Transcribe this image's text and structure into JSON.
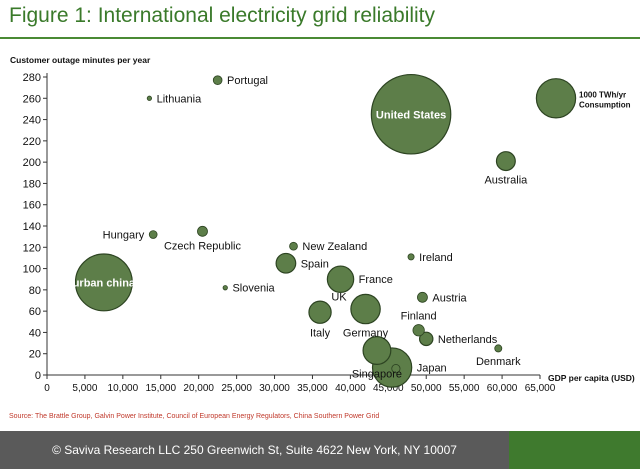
{
  "header": {
    "title": "Figure 1: International electricity grid reliability"
  },
  "source": "Source: The Brattle Group, Galvin Power Institute, Council of European Energy Regulators, China Southern Power Grid",
  "footer": {
    "text": "© Saviva Research LLC 250 Greenwich St, Suite 4622 New York, NY 10007"
  },
  "colors": {
    "bubble_fill": "#5d7e49",
    "bubble_stroke": "#2d4422",
    "title": "#3a7a2a",
    "footer_dark": "#5a5a5a",
    "footer_green": "#3f7a2e",
    "source_text": "#c0392b"
  },
  "chart_data": {
    "type": "bubble",
    "title": "",
    "ylabel": "Customer outage minutes per year",
    "xlabel": "GDP per capita (USD)",
    "xlim": [
      0,
      65000
    ],
    "ylim": [
      0,
      280
    ],
    "xticks": [
      0,
      5000,
      10000,
      15000,
      20000,
      25000,
      30000,
      35000,
      40000,
      45000,
      50000,
      55000,
      60000,
      65000
    ],
    "xtick_labels": [
      "0",
      "5,000",
      "10,000",
      "15,000",
      "20,000",
      "25,000",
      "30,000",
      "35,000",
      "40,000",
      "45,000",
      "50,000",
      "55,000",
      "60,000",
      "65,000"
    ],
    "yticks": [
      0,
      20,
      40,
      60,
      80,
      100,
      120,
      140,
      160,
      180,
      200,
      220,
      240,
      260,
      280
    ],
    "grid": false,
    "size_legend": {
      "x": 67000,
      "y": 260,
      "consumption": 1000,
      "label_line1": "1000 TWh/yr",
      "label_line2": "Consumption"
    },
    "points": [
      {
        "label": "Portugal",
        "x": 22500,
        "y": 277,
        "consumption": 50,
        "label_pos": "right"
      },
      {
        "label": "Lithuania",
        "x": 13500,
        "y": 260,
        "consumption": 10,
        "label_pos": "right"
      },
      {
        "label": "United States",
        "x": 48000,
        "y": 245,
        "consumption": 4100,
        "label_pos": "inside"
      },
      {
        "label": "Australia",
        "x": 60500,
        "y": 201,
        "consumption": 230,
        "label_pos": "below"
      },
      {
        "label": "Hungary",
        "x": 14000,
        "y": 132,
        "consumption": 40,
        "label_pos": "left"
      },
      {
        "label": "Czech Republic",
        "x": 20500,
        "y": 135,
        "consumption": 65,
        "label_pos": "below"
      },
      {
        "label": "New Zealand",
        "x": 32500,
        "y": 121,
        "consumption": 40,
        "label_pos": "right"
      },
      {
        "label": "Ireland",
        "x": 48000,
        "y": 111,
        "consumption": 25,
        "label_pos": "right"
      },
      {
        "label": "Spain",
        "x": 31500,
        "y": 105,
        "consumption": 250,
        "label_pos": "right"
      },
      {
        "label": "urban china",
        "x": 7500,
        "y": 87,
        "consumption": 2100,
        "label_pos": "inside"
      },
      {
        "label": "France",
        "x": 38700,
        "y": 90,
        "consumption": 450,
        "label_pos": "right"
      },
      {
        "label": "Slovenia",
        "x": 23500,
        "y": 82,
        "consumption": 12,
        "label_pos": "right"
      },
      {
        "label": "UK",
        "x": 38500,
        "y": 82,
        "consumption": 0,
        "label_pos": "below"
      },
      {
        "label": "Austria",
        "x": 49500,
        "y": 73,
        "consumption": 65,
        "label_pos": "right"
      },
      {
        "label": "Italy",
        "x": 36000,
        "y": 59,
        "consumption": 320,
        "label_pos": "below"
      },
      {
        "label": "Germany",
        "x": 42000,
        "y": 62,
        "consumption": 560,
        "label_pos": "below"
      },
      {
        "label": "Finland",
        "x": 49000,
        "y": 42,
        "consumption": 85,
        "label_pos": "above"
      },
      {
        "label": "Netherlands",
        "x": 50000,
        "y": 34,
        "consumption": 115,
        "label_pos": "right"
      },
      {
        "label": "Denmark",
        "x": 59500,
        "y": 25,
        "consumption": 33,
        "label_pos": "below"
      },
      {
        "label": "Japan",
        "x": 45500,
        "y": 7,
        "consumption": 1000,
        "label_pos": "right"
      },
      {
        "label": "Singapore",
        "x": 43500,
        "y": 23,
        "consumption": 500,
        "label_pos": "below"
      },
      {
        "label": "",
        "x": 46000,
        "y": 6,
        "consumption": 45,
        "label_pos": "none"
      }
    ]
  }
}
